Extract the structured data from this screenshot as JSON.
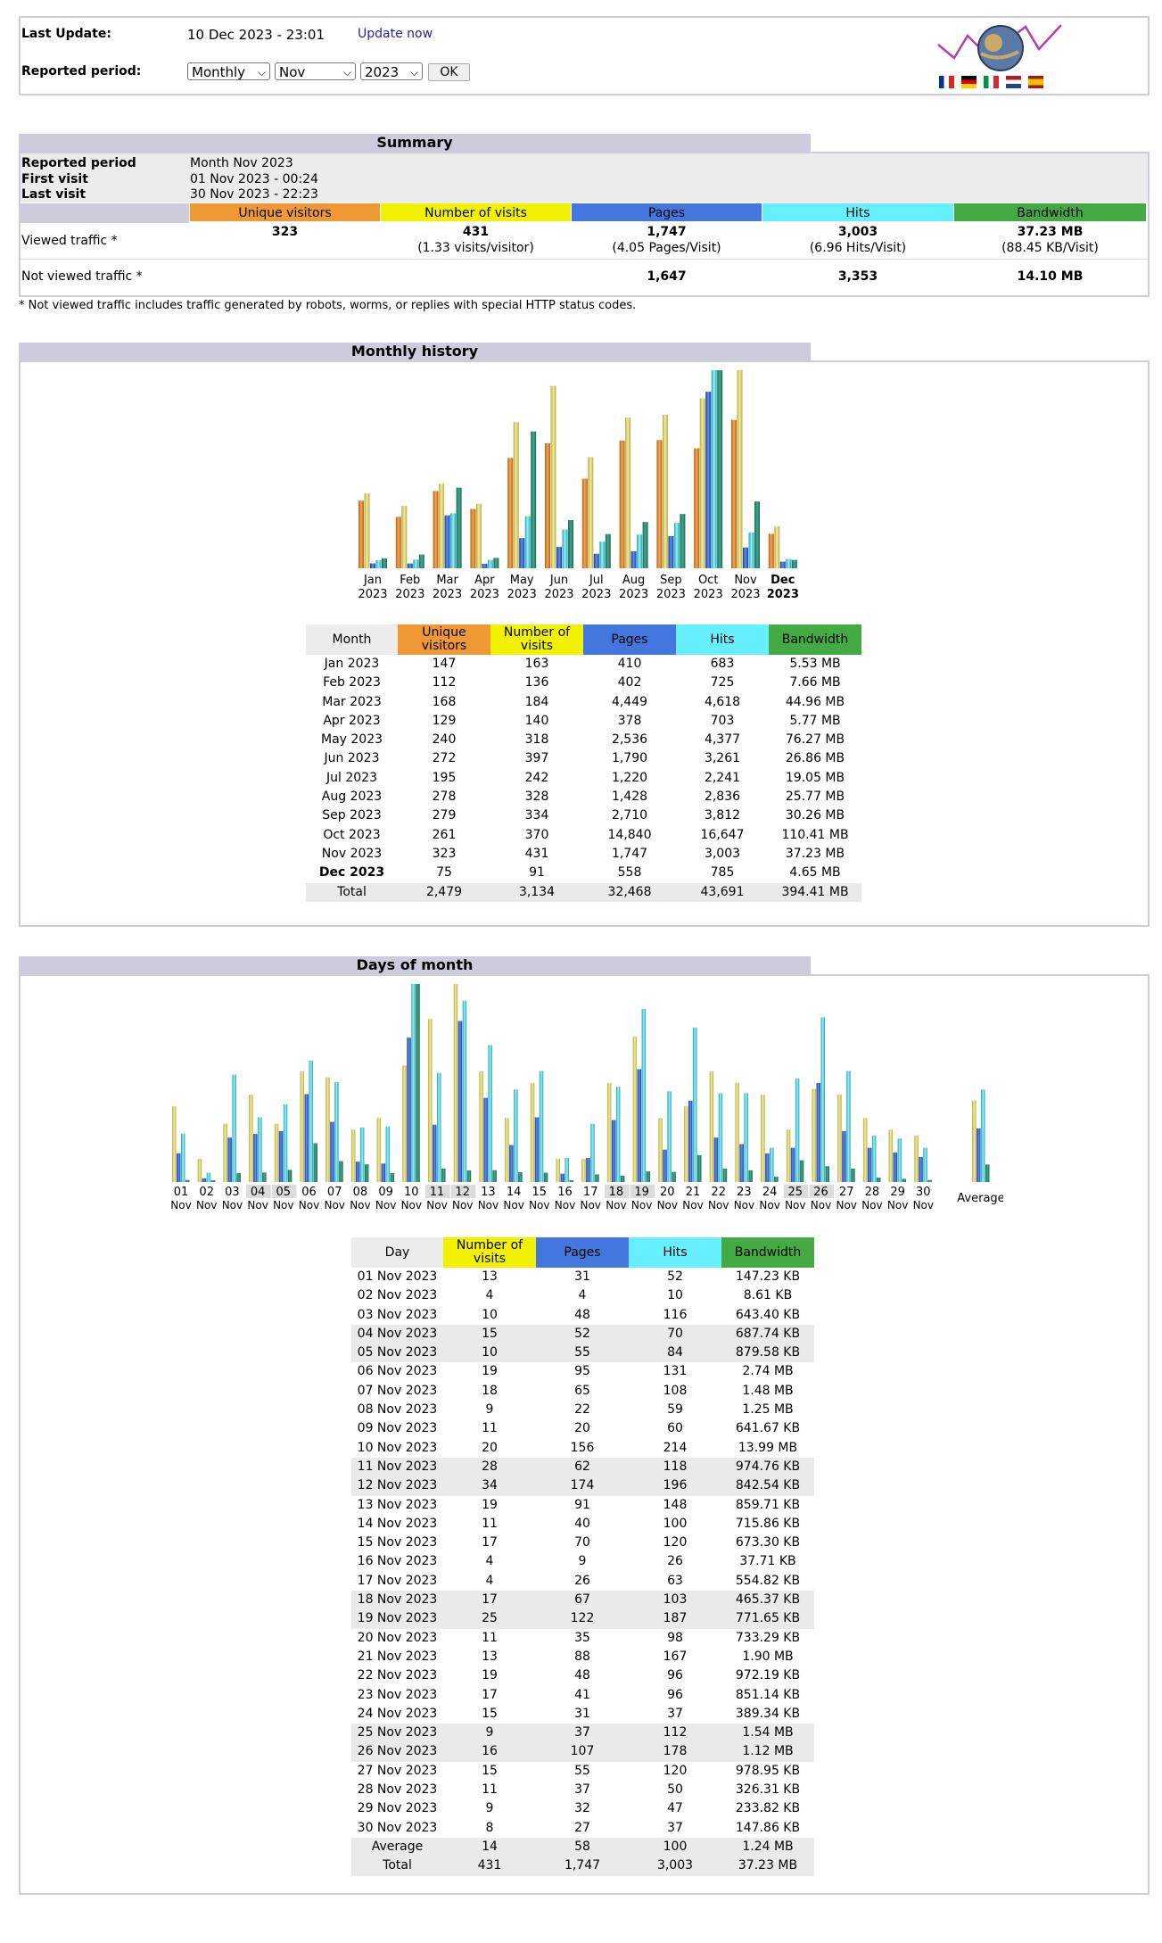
{
  "header": {
    "last_update_label": "Last Update:",
    "last_update_value": "10 Dec 2023 - 23:01",
    "update_now": "Update now",
    "reported_period_label": "Reported period:",
    "period_type": "Monthly",
    "period_month": "Nov",
    "period_year": "2023",
    "ok_label": "OK",
    "flags": [
      "fr-flag-icon",
      "de-flag-icon",
      "it-flag-icon",
      "nl-flag-icon",
      "es-flag-icon"
    ]
  },
  "summary": {
    "title": "Summary",
    "reported_period_label": "Reported period",
    "reported_period_value": "Month Nov 2023",
    "first_visit_label": "First visit",
    "first_visit_value": "01 Nov 2023 - 00:24",
    "last_visit_label": "Last visit",
    "last_visit_value": "30 Nov 2023 - 22:23",
    "columns": [
      "Unique visitors",
      "Number of visits",
      "Pages",
      "Hits",
      "Bandwidth"
    ],
    "viewed_label": "Viewed traffic *",
    "viewed": {
      "unique": "323",
      "visits": "431",
      "visits_sub": "(1.33 visits/visitor)",
      "pages": "1,747",
      "pages_sub": "(4.05 Pages/Visit)",
      "hits": "3,003",
      "hits_sub": "(6.96 Hits/Visit)",
      "bandwidth": "37.23 MB",
      "bandwidth_sub": "(88.45 KB/Visit)"
    },
    "not_viewed_label": "Not viewed traffic *",
    "not_viewed": {
      "pages": "1,647",
      "hits": "3,353",
      "bandwidth": "14.10 MB"
    },
    "footnote": "* Not viewed traffic includes traffic generated by robots, worms, or replies with special HTTP status codes."
  },
  "colors": {
    "unique": "#ee9933",
    "visits": "#f2f200",
    "pages": "#4477dd",
    "hits": "#66f0ff",
    "bandwidth": "#2ea495",
    "header_bg": "#ccccdd",
    "band_col": "#44aa44"
  },
  "monthly": {
    "title": "Monthly history",
    "table_headers": [
      "Month",
      "Unique visitors",
      "Number of visits",
      "Pages",
      "Hits",
      "Bandwidth"
    ],
    "rows": [
      {
        "month": "Jan 2023",
        "unique": "147",
        "visits": "163",
        "pages": "410",
        "hits": "683",
        "bandwidth": "5.53 MB"
      },
      {
        "month": "Feb 2023",
        "unique": "112",
        "visits": "136",
        "pages": "402",
        "hits": "725",
        "bandwidth": "7.66 MB"
      },
      {
        "month": "Mar 2023",
        "unique": "168",
        "visits": "184",
        "pages": "4,449",
        "hits": "4,618",
        "bandwidth": "44.96 MB"
      },
      {
        "month": "Apr 2023",
        "unique": "129",
        "visits": "140",
        "pages": "378",
        "hits": "703",
        "bandwidth": "5.77 MB"
      },
      {
        "month": "May 2023",
        "unique": "240",
        "visits": "318",
        "pages": "2,536",
        "hits": "4,377",
        "bandwidth": "76.27 MB"
      },
      {
        "month": "Jun 2023",
        "unique": "272",
        "visits": "397",
        "pages": "1,790",
        "hits": "3,261",
        "bandwidth": "26.86 MB"
      },
      {
        "month": "Jul 2023",
        "unique": "195",
        "visits": "242",
        "pages": "1,220",
        "hits": "2,241",
        "bandwidth": "19.05 MB"
      },
      {
        "month": "Aug 2023",
        "unique": "278",
        "visits": "328",
        "pages": "1,428",
        "hits": "2,836",
        "bandwidth": "25.77 MB"
      },
      {
        "month": "Sep 2023",
        "unique": "279",
        "visits": "334",
        "pages": "2,710",
        "hits": "3,812",
        "bandwidth": "30.26 MB"
      },
      {
        "month": "Oct 2023",
        "unique": "261",
        "visits": "370",
        "pages": "14,840",
        "hits": "16,647",
        "bandwidth": "110.41 MB"
      },
      {
        "month": "Nov 2023",
        "unique": "323",
        "visits": "431",
        "pages": "1,747",
        "hits": "3,003",
        "bandwidth": "37.23 MB"
      },
      {
        "month": "Dec 2023",
        "unique": "75",
        "visits": "91",
        "pages": "558",
        "hits": "785",
        "bandwidth": "4.65 MB"
      }
    ],
    "total": {
      "month": "Total",
      "unique": "2,479",
      "visits": "3,134",
      "pages": "32,468",
      "hits": "43,691",
      "bandwidth": "394.41 MB"
    }
  },
  "days": {
    "title": "Days of month",
    "table_headers": [
      "Day",
      "Number of visits",
      "Pages",
      "Hits",
      "Bandwidth"
    ],
    "rows": [
      {
        "day": "01 Nov 2023",
        "visits": "13",
        "pages": "31",
        "hits": "52",
        "bandwidth": "147.23 KB"
      },
      {
        "day": "02 Nov 2023",
        "visits": "4",
        "pages": "4",
        "hits": "10",
        "bandwidth": "8.61 KB"
      },
      {
        "day": "03 Nov 2023",
        "visits": "10",
        "pages": "48",
        "hits": "116",
        "bandwidth": "643.40 KB"
      },
      {
        "day": "04 Nov 2023",
        "visits": "15",
        "pages": "52",
        "hits": "70",
        "bandwidth": "687.74 KB"
      },
      {
        "day": "05 Nov 2023",
        "visits": "10",
        "pages": "55",
        "hits": "84",
        "bandwidth": "879.58 KB"
      },
      {
        "day": "06 Nov 2023",
        "visits": "19",
        "pages": "95",
        "hits": "131",
        "bandwidth": "2.74 MB"
      },
      {
        "day": "07 Nov 2023",
        "visits": "18",
        "pages": "65",
        "hits": "108",
        "bandwidth": "1.48 MB"
      },
      {
        "day": "08 Nov 2023",
        "visits": "9",
        "pages": "22",
        "hits": "59",
        "bandwidth": "1.25 MB"
      },
      {
        "day": "09 Nov 2023",
        "visits": "11",
        "pages": "20",
        "hits": "60",
        "bandwidth": "641.67 KB"
      },
      {
        "day": "10 Nov 2023",
        "visits": "20",
        "pages": "156",
        "hits": "214",
        "bandwidth": "13.99 MB"
      },
      {
        "day": "11 Nov 2023",
        "visits": "28",
        "pages": "62",
        "hits": "118",
        "bandwidth": "974.76 KB"
      },
      {
        "day": "12 Nov 2023",
        "visits": "34",
        "pages": "174",
        "hits": "196",
        "bandwidth": "842.54 KB"
      },
      {
        "day": "13 Nov 2023",
        "visits": "19",
        "pages": "91",
        "hits": "148",
        "bandwidth": "859.71 KB"
      },
      {
        "day": "14 Nov 2023",
        "visits": "11",
        "pages": "40",
        "hits": "100",
        "bandwidth": "715.86 KB"
      },
      {
        "day": "15 Nov 2023",
        "visits": "17",
        "pages": "70",
        "hits": "120",
        "bandwidth": "673.30 KB"
      },
      {
        "day": "16 Nov 2023",
        "visits": "4",
        "pages": "9",
        "hits": "26",
        "bandwidth": "37.71 KB"
      },
      {
        "day": "17 Nov 2023",
        "visits": "4",
        "pages": "26",
        "hits": "63",
        "bandwidth": "554.82 KB"
      },
      {
        "day": "18 Nov 2023",
        "visits": "17",
        "pages": "67",
        "hits": "103",
        "bandwidth": "465.37 KB"
      },
      {
        "day": "19 Nov 2023",
        "visits": "25",
        "pages": "122",
        "hits": "187",
        "bandwidth": "771.65 KB"
      },
      {
        "day": "20 Nov 2023",
        "visits": "11",
        "pages": "35",
        "hits": "98",
        "bandwidth": "733.29 KB"
      },
      {
        "day": "21 Nov 2023",
        "visits": "13",
        "pages": "88",
        "hits": "167",
        "bandwidth": "1.90 MB"
      },
      {
        "day": "22 Nov 2023",
        "visits": "19",
        "pages": "48",
        "hits": "96",
        "bandwidth": "972.19 KB"
      },
      {
        "day": "23 Nov 2023",
        "visits": "17",
        "pages": "41",
        "hits": "96",
        "bandwidth": "851.14 KB"
      },
      {
        "day": "24 Nov 2023",
        "visits": "15",
        "pages": "31",
        "hits": "37",
        "bandwidth": "389.34 KB"
      },
      {
        "day": "25 Nov 2023",
        "visits": "9",
        "pages": "37",
        "hits": "112",
        "bandwidth": "1.54 MB"
      },
      {
        "day": "26 Nov 2023",
        "visits": "16",
        "pages": "107",
        "hits": "178",
        "bandwidth": "1.12 MB"
      },
      {
        "day": "27 Nov 2023",
        "visits": "15",
        "pages": "55",
        "hits": "120",
        "bandwidth": "978.95 KB"
      },
      {
        "day": "28 Nov 2023",
        "visits": "11",
        "pages": "37",
        "hits": "50",
        "bandwidth": "326.31 KB"
      },
      {
        "day": "29 Nov 2023",
        "visits": "9",
        "pages": "32",
        "hits": "47",
        "bandwidth": "233.82 KB"
      },
      {
        "day": "30 Nov 2023",
        "visits": "8",
        "pages": "27",
        "hits": "37",
        "bandwidth": "147.86 KB"
      }
    ],
    "weekend_days": [
      4,
      5,
      11,
      12,
      18,
      19,
      25,
      26
    ],
    "average": {
      "day": "Average",
      "visits": "14",
      "pages": "58",
      "hits": "100",
      "bandwidth": "1.24 MB"
    },
    "total": {
      "day": "Total",
      "visits": "431",
      "pages": "1,747",
      "hits": "3,003",
      "bandwidth": "37.23 MB"
    },
    "average_label": "Average",
    "month_label": "Nov"
  },
  "chart_data": [
    {
      "type": "bar",
      "title": "Monthly history",
      "categories": [
        "Jan 2023",
        "Feb 2023",
        "Mar 2023",
        "Apr 2023",
        "May 2023",
        "Jun 2023",
        "Jul 2023",
        "Aug 2023",
        "Sep 2023",
        "Oct 2023",
        "Nov 2023",
        "Dec 2023"
      ],
      "series": [
        {
          "name": "Unique visitors",
          "values": [
            147,
            112,
            168,
            129,
            240,
            272,
            195,
            278,
            279,
            261,
            323,
            75
          ]
        },
        {
          "name": "Number of visits",
          "values": [
            163,
            136,
            184,
            140,
            318,
            397,
            242,
            328,
            334,
            370,
            431,
            91
          ]
        },
        {
          "name": "Pages",
          "values": [
            410,
            402,
            4449,
            378,
            2536,
            1790,
            1220,
            1428,
            2710,
            14840,
            1747,
            558
          ]
        },
        {
          "name": "Hits",
          "values": [
            683,
            725,
            4618,
            703,
            4377,
            3261,
            2241,
            2836,
            3812,
            16647,
            3003,
            785
          ]
        },
        {
          "name": "Bandwidth",
          "values": [
            5.53,
            7.66,
            44.96,
            5.77,
            76.27,
            26.86,
            19.05,
            25.77,
            30.26,
            110.41,
            37.23,
            4.65
          ]
        }
      ]
    },
    {
      "type": "bar",
      "title": "Days of month",
      "categories": [
        "01",
        "02",
        "03",
        "04",
        "05",
        "06",
        "07",
        "08",
        "09",
        "10",
        "11",
        "12",
        "13",
        "14",
        "15",
        "16",
        "17",
        "18",
        "19",
        "20",
        "21",
        "22",
        "23",
        "24",
        "25",
        "26",
        "27",
        "28",
        "29",
        "30"
      ],
      "series": [
        {
          "name": "Number of visits",
          "values": [
            13,
            4,
            10,
            15,
            10,
            19,
            18,
            9,
            11,
            20,
            28,
            34,
            19,
            11,
            17,
            4,
            4,
            17,
            25,
            11,
            13,
            19,
            17,
            15,
            9,
            16,
            15,
            11,
            9,
            8
          ]
        },
        {
          "name": "Pages",
          "values": [
            31,
            4,
            48,
            52,
            55,
            95,
            65,
            22,
            20,
            156,
            62,
            174,
            91,
            40,
            70,
            9,
            26,
            67,
            122,
            35,
            88,
            48,
            41,
            31,
            37,
            107,
            55,
            37,
            32,
            27
          ]
        },
        {
          "name": "Hits",
          "values": [
            52,
            10,
            116,
            70,
            84,
            131,
            108,
            59,
            60,
            214,
            118,
            196,
            148,
            100,
            120,
            26,
            63,
            103,
            187,
            98,
            167,
            96,
            96,
            37,
            112,
            178,
            120,
            50,
            47,
            37
          ]
        },
        {
          "name": "Bandwidth (KB)",
          "values": [
            147.23,
            8.61,
            643.4,
            687.74,
            879.58,
            2805.76,
            1515.52,
            1280,
            641.67,
            14325.76,
            974.76,
            842.54,
            859.71,
            715.86,
            673.3,
            37.71,
            554.82,
            465.37,
            771.65,
            733.29,
            1945.6,
            972.19,
            851.14,
            389.34,
            1576.96,
            1146.88,
            978.95,
            326.31,
            233.82,
            147.86
          ]
        }
      ],
      "average": {
        "visits": 14,
        "pages": 58,
        "hits": 100,
        "bandwidth_kb": 1269.76
      }
    }
  ]
}
